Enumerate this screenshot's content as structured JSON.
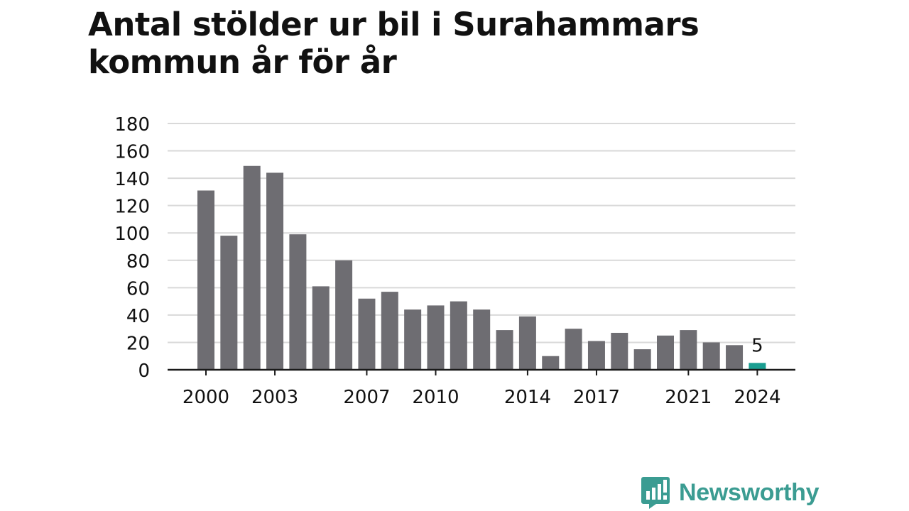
{
  "colors": {
    "bar": "#6e6d72",
    "highlight": "#1a9e91",
    "grid": "#d9d9d9",
    "axis": "#1a1a1a",
    "text": "#111111",
    "brand": "#3b9c92"
  },
  "brand": {
    "name": "Newsworthy",
    "icon": "newsworthy-logo-icon"
  },
  "chart_data": {
    "type": "bar",
    "title": "Antal stölder ur bil i Surahammars kommun år för år",
    "xlabel": "",
    "ylabel": "",
    "ylim": [
      0,
      180
    ],
    "yticks": [
      0,
      20,
      40,
      60,
      80,
      100,
      120,
      140,
      160,
      180
    ],
    "grid": true,
    "legend": "none",
    "categories": [
      "2000",
      "2001",
      "2002",
      "2003",
      "2004",
      "2005",
      "2006",
      "2007",
      "2008",
      "2009",
      "2010",
      "2011",
      "2012",
      "2013",
      "2014",
      "2015",
      "2016",
      "2017",
      "2018",
      "2019",
      "2020",
      "2021",
      "2022",
      "2023",
      "2024"
    ],
    "xtick_labels": [
      "2000",
      "2003",
      "2007",
      "2010",
      "2014",
      "2017",
      "2021",
      "2024"
    ],
    "values": [
      131,
      98,
      149,
      144,
      99,
      61,
      80,
      52,
      57,
      44,
      47,
      50,
      44,
      29,
      39,
      10,
      30,
      21,
      27,
      15,
      25,
      29,
      20,
      18,
      5
    ],
    "highlight_category": "2024",
    "data_labels": [
      {
        "category": "2024",
        "text": "5"
      }
    ]
  }
}
